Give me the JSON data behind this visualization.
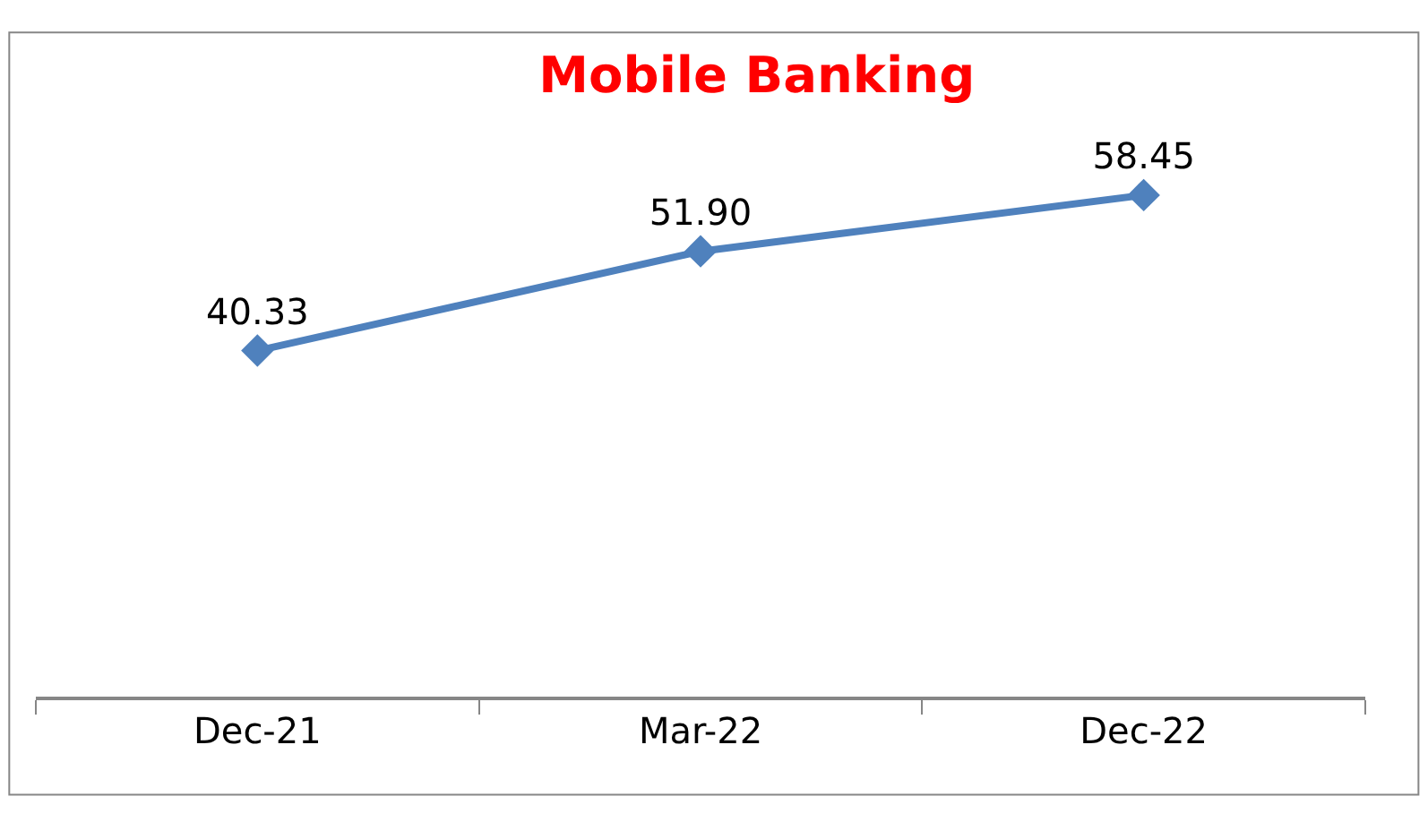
{
  "chart_data": {
    "type": "line",
    "title": "Mobile Banking",
    "categories": [
      "Dec-21",
      "Mar-22",
      "Dec-22"
    ],
    "series": [
      {
        "color": "#4f81bd",
        "values": [
          40.33,
          51.9,
          58.45
        ],
        "value_labels": [
          "40.33",
          "51.90",
          "58.45"
        ]
      }
    ],
    "legend": false,
    "marker": "diamond",
    "line_style": "solid",
    "tick_labels": "x"
  }
}
